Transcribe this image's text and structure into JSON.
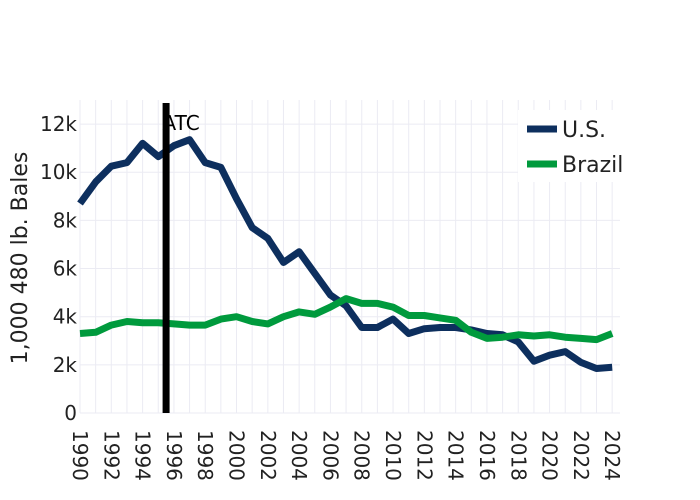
{
  "chart_data": {
    "type": "line",
    "ylabel": "1,000 480 lb. Bales",
    "xlim": [
      1990,
      2024.5
    ],
    "ylim": [
      0,
      13000
    ],
    "y_ticks": [
      0,
      2000,
      4000,
      6000,
      8000,
      10000,
      12000
    ],
    "y_tick_labels": [
      "0",
      "2k",
      "4k",
      "6k",
      "8k",
      "10k",
      "12k"
    ],
    "x_ticks": [
      1990,
      1992,
      1994,
      1996,
      1998,
      2000,
      2002,
      2004,
      2006,
      2008,
      2010,
      2012,
      2014,
      2016,
      2018,
      2020,
      2022,
      2024
    ],
    "x_tick_labels": [
      "1990",
      "1992",
      "1994",
      "1996",
      "1998",
      "2000",
      "2002",
      "2004",
      "2006",
      "2008",
      "2010",
      "2012",
      "2014",
      "2016",
      "2018",
      "2020",
      "2022",
      "2024"
    ],
    "grid": true,
    "legend_position": "top-right",
    "annotation": {
      "label": "ATC",
      "x": 1995.5
    },
    "x": [
      1990,
      1991,
      1992,
      1993,
      1994,
      1995,
      1996,
      1997,
      1998,
      1999,
      2000,
      2001,
      2002,
      2003,
      2004,
      2005,
      2006,
      2007,
      2008,
      2009,
      2010,
      2011,
      2012,
      2013,
      2014,
      2015,
      2016,
      2017,
      2018,
      2019,
      2020,
      2021,
      2022,
      2023,
      2024
    ],
    "series": [
      {
        "name": "U.S.",
        "color": "#0d2f5e",
        "values": [
          8700,
          9600,
          10250,
          10400,
          11200,
          10650,
          11100,
          11350,
          10400,
          10200,
          8900,
          7700,
          7250,
          6250,
          6700,
          5800,
          4900,
          4450,
          3550,
          3550,
          3900,
          3300,
          3500,
          3550,
          3550,
          3450,
          3300,
          3250,
          2950,
          2150,
          2400,
          2550,
          2100,
          1850,
          1900
        ]
      },
      {
        "name": "Brazil",
        "color": "#009a3d",
        "values": [
          3300,
          3350,
          3650,
          3800,
          3750,
          3750,
          3700,
          3650,
          3650,
          3900,
          4000,
          3800,
          3700,
          4000,
          4200,
          4100,
          4400,
          4750,
          4550,
          4550,
          4400,
          4050,
          4050,
          3950,
          3850,
          3350,
          3100,
          3150,
          3250,
          3200,
          3250,
          3150,
          3100,
          3050,
          3300
        ]
      }
    ]
  }
}
